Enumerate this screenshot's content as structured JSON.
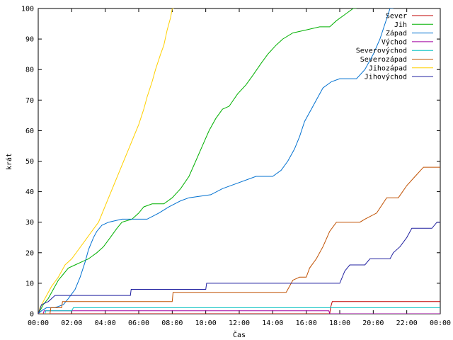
{
  "chart_data": {
    "type": "line",
    "xlabel": "Čas",
    "ylabel": "krát",
    "ylim": [
      0,
      100
    ],
    "xlim_hours": [
      0,
      24
    ],
    "x_ticks": [
      "00:00",
      "02:00",
      "04:00",
      "06:00",
      "08:00",
      "10:00",
      "12:00",
      "14:00",
      "16:00",
      "18:00",
      "20:00",
      "22:00",
      "00:00"
    ],
    "y_ticks": [
      "0",
      "10",
      "20",
      "30",
      "40",
      "50",
      "60",
      "70",
      "80",
      "90",
      "100"
    ],
    "grid": false,
    "legend_position": "top-right",
    "series": [
      {
        "name": "Sever",
        "color": "#c00000",
        "points": [
          [
            0,
            0
          ],
          [
            17.4,
            0
          ],
          [
            17.45,
            2
          ],
          [
            17.55,
            4
          ],
          [
            24,
            4
          ]
        ]
      },
      {
        "name": "Jih",
        "color": "#00b000",
        "points": [
          [
            0,
            0
          ],
          [
            0.1,
            1
          ],
          [
            0.3,
            3
          ],
          [
            0.6,
            5
          ],
          [
            0.9,
            8
          ],
          [
            1.2,
            11
          ],
          [
            1.5,
            13
          ],
          [
            1.8,
            15
          ],
          [
            2.2,
            16
          ],
          [
            2.6,
            17
          ],
          [
            3.0,
            18
          ],
          [
            3.5,
            20
          ],
          [
            3.9,
            22
          ],
          [
            4.3,
            25
          ],
          [
            4.7,
            28
          ],
          [
            5.0,
            30
          ],
          [
            5.6,
            31
          ],
          [
            6.0,
            33
          ],
          [
            6.3,
            35
          ],
          [
            6.8,
            36
          ],
          [
            7.5,
            36
          ],
          [
            8.0,
            38
          ],
          [
            8.5,
            41
          ],
          [
            9.0,
            45
          ],
          [
            9.4,
            50
          ],
          [
            9.8,
            55
          ],
          [
            10.2,
            60
          ],
          [
            10.6,
            64
          ],
          [
            11.0,
            67
          ],
          [
            11.4,
            68
          ],
          [
            11.9,
            72
          ],
          [
            12.4,
            75
          ],
          [
            12.8,
            78
          ],
          [
            13.3,
            82
          ],
          [
            13.7,
            85
          ],
          [
            14.2,
            88
          ],
          [
            14.6,
            90
          ],
          [
            15.2,
            92
          ],
          [
            16.0,
            93
          ],
          [
            16.8,
            94
          ],
          [
            17.4,
            94
          ],
          [
            17.8,
            96
          ],
          [
            18.3,
            98
          ],
          [
            18.8,
            100
          ],
          [
            19.0,
            100
          ]
        ]
      },
      {
        "name": "Západ",
        "color": "#0070d0",
        "points": [
          [
            0,
            0
          ],
          [
            0.2,
            1
          ],
          [
            0.5,
            2
          ],
          [
            1.0,
            2
          ],
          [
            1.5,
            3
          ],
          [
            1.8,
            5
          ],
          [
            2.2,
            8
          ],
          [
            2.5,
            12
          ],
          [
            2.8,
            17
          ],
          [
            3.0,
            21
          ],
          [
            3.3,
            25
          ],
          [
            3.5,
            27
          ],
          [
            3.8,
            29
          ],
          [
            4.2,
            30
          ],
          [
            5.0,
            31
          ],
          [
            6.5,
            31
          ],
          [
            7.2,
            33
          ],
          [
            7.8,
            35
          ],
          [
            8.5,
            37
          ],
          [
            9.0,
            38
          ],
          [
            10.3,
            39
          ],
          [
            11.0,
            41
          ],
          [
            12.0,
            43
          ],
          [
            13.0,
            45
          ],
          [
            14.0,
            45
          ],
          [
            14.5,
            47
          ],
          [
            14.9,
            50
          ],
          [
            15.3,
            54
          ],
          [
            15.6,
            58
          ],
          [
            15.9,
            63
          ],
          [
            16.3,
            67
          ],
          [
            16.7,
            71
          ],
          [
            17.0,
            74
          ],
          [
            17.5,
            76
          ],
          [
            18.0,
            77
          ],
          [
            19.0,
            77
          ],
          [
            19.5,
            80
          ],
          [
            20.0,
            85
          ],
          [
            20.4,
            90
          ],
          [
            20.7,
            95
          ],
          [
            21.0,
            100
          ],
          [
            21.2,
            100
          ]
        ]
      },
      {
        "name": "Východ",
        "color": "#a000a0",
        "points": [
          [
            0,
            0
          ],
          [
            0.3,
            0
          ],
          [
            0.35,
            1
          ],
          [
            0.6,
            1
          ],
          [
            17.35,
            1
          ],
          [
            17.4,
            0
          ],
          [
            24,
            0
          ]
        ]
      },
      {
        "name": "Severovýchod",
        "color": "#00c0c0",
        "points": [
          [
            0,
            0
          ],
          [
            0.4,
            0
          ],
          [
            0.45,
            1
          ],
          [
            2.0,
            1
          ],
          [
            2.1,
            2
          ],
          [
            24,
            2
          ]
        ]
      },
      {
        "name": "Severozápad",
        "color": "#c05000",
        "points": [
          [
            0,
            0
          ],
          [
            0.7,
            0
          ],
          [
            0.75,
            2
          ],
          [
            1.4,
            2
          ],
          [
            1.45,
            4
          ],
          [
            8.0,
            4
          ],
          [
            8.05,
            7
          ],
          [
            14.8,
            7
          ],
          [
            15.0,
            9
          ],
          [
            15.2,
            11
          ],
          [
            15.6,
            12
          ],
          [
            16.0,
            12
          ],
          [
            16.2,
            15
          ],
          [
            16.6,
            18
          ],
          [
            17.0,
            22
          ],
          [
            17.4,
            27
          ],
          [
            17.8,
            30
          ],
          [
            19.2,
            30
          ],
          [
            19.5,
            31
          ],
          [
            20.2,
            33
          ],
          [
            20.8,
            38
          ],
          [
            21.5,
            38
          ],
          [
            22.0,
            42
          ],
          [
            22.5,
            45
          ],
          [
            23.0,
            48
          ],
          [
            24.0,
            48
          ]
        ]
      },
      {
        "name": "Jihozápad",
        "color": "#ffd000",
        "points": [
          [
            0,
            0
          ],
          [
            0.1,
            2
          ],
          [
            0.4,
            5
          ],
          [
            0.8,
            9
          ],
          [
            1.2,
            12
          ],
          [
            1.6,
            16
          ],
          [
            2.0,
            18
          ],
          [
            2.4,
            21
          ],
          [
            2.8,
            24
          ],
          [
            3.2,
            27
          ],
          [
            3.6,
            30
          ],
          [
            3.9,
            34
          ],
          [
            4.2,
            38
          ],
          [
            4.5,
            42
          ],
          [
            4.8,
            46
          ],
          [
            5.1,
            50
          ],
          [
            5.4,
            54
          ],
          [
            5.7,
            58
          ],
          [
            6.0,
            62
          ],
          [
            6.3,
            67
          ],
          [
            6.5,
            71
          ],
          [
            6.8,
            76
          ],
          [
            7.0,
            80
          ],
          [
            7.3,
            85
          ],
          [
            7.5,
            88
          ],
          [
            7.7,
            93
          ],
          [
            7.9,
            97
          ],
          [
            8.0,
            100
          ],
          [
            8.1,
            100
          ]
        ]
      },
      {
        "name": "Jihovýchod",
        "color": "#2020a0",
        "points": [
          [
            0,
            0
          ],
          [
            0.2,
            3
          ],
          [
            0.6,
            4
          ],
          [
            1.0,
            6
          ],
          [
            5.5,
            6
          ],
          [
            5.55,
            8
          ],
          [
            10.0,
            8
          ],
          [
            10.05,
            10
          ],
          [
            18.0,
            10
          ],
          [
            18.3,
            14
          ],
          [
            18.6,
            16
          ],
          [
            19.5,
            16
          ],
          [
            19.8,
            18
          ],
          [
            21.0,
            18
          ],
          [
            21.2,
            20
          ],
          [
            21.6,
            22
          ],
          [
            22.0,
            25
          ],
          [
            22.3,
            28
          ],
          [
            23.5,
            28
          ],
          [
            23.8,
            30
          ],
          [
            24.0,
            30
          ]
        ]
      }
    ]
  }
}
